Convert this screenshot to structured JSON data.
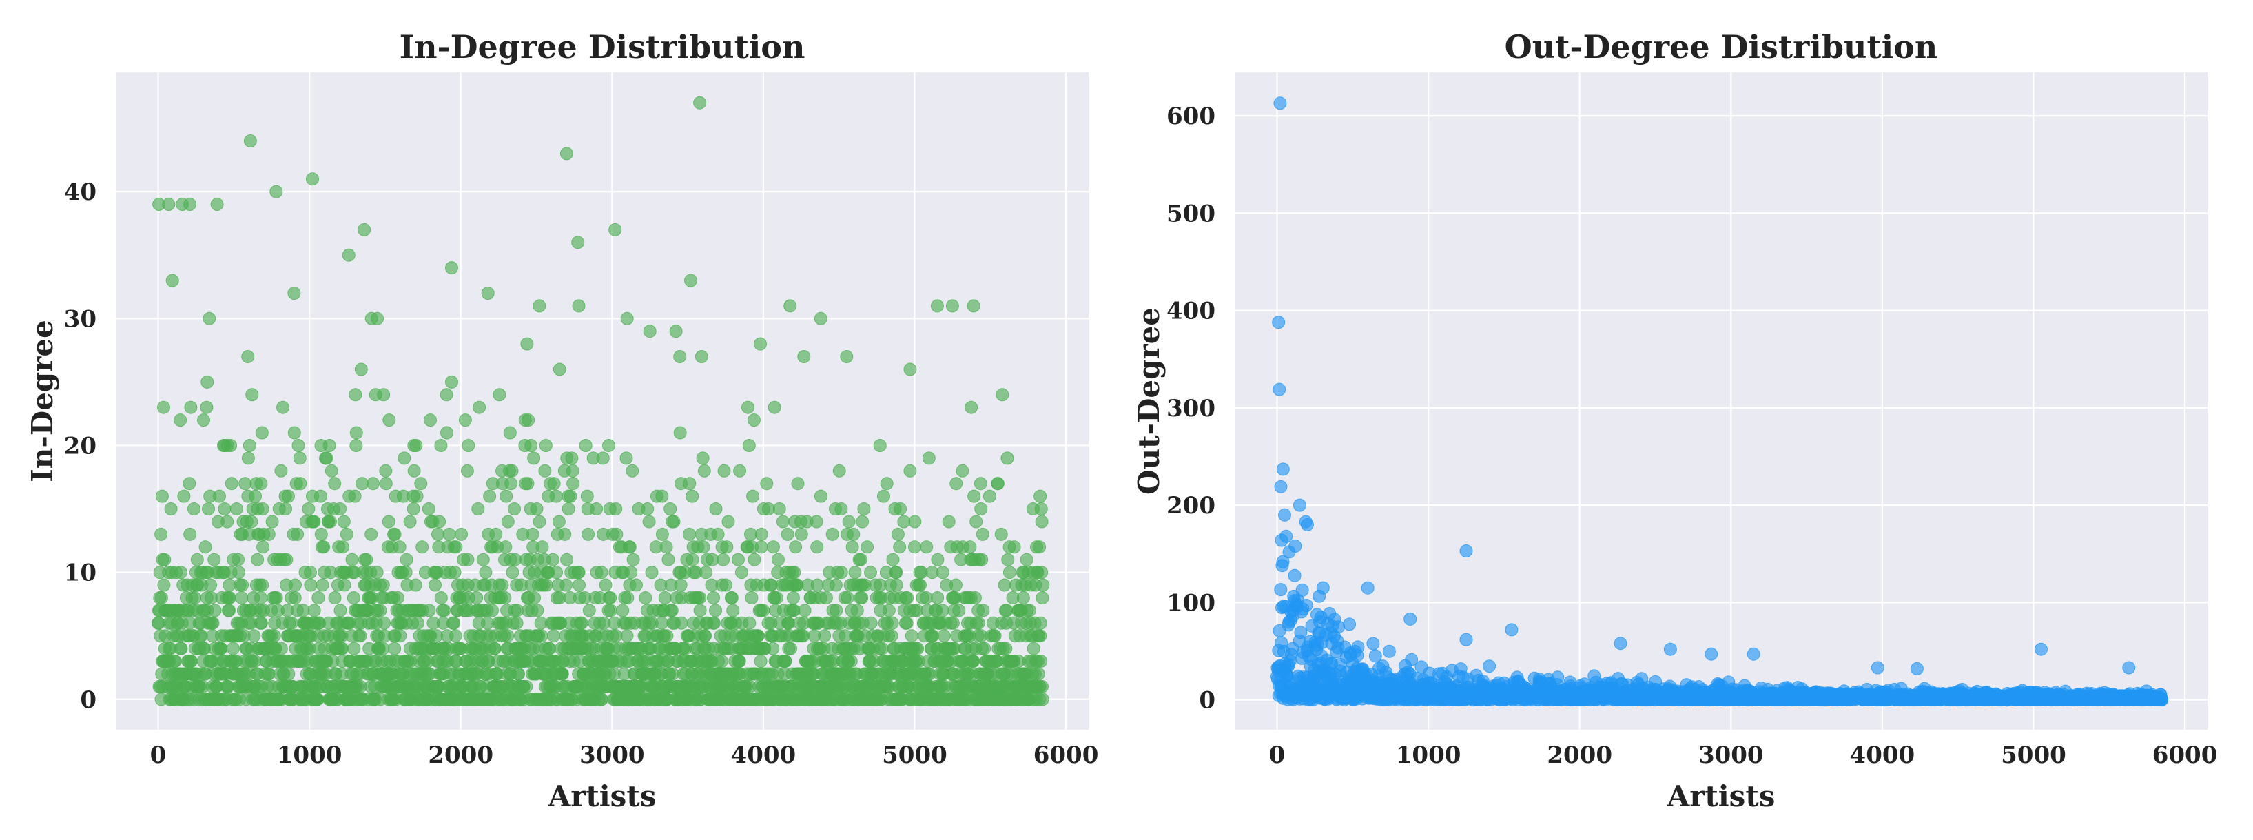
{
  "chart_data": [
    {
      "type": "scatter",
      "title": "In-Degree Distribution",
      "xlabel": "Artists",
      "ylabel": "In-Degree",
      "xlim": [
        -280,
        6150
      ],
      "ylim": [
        -2.4,
        49.4
      ],
      "xticks": [
        0,
        1000,
        2000,
        3000,
        4000,
        5000,
        6000
      ],
      "yticks": [
        0,
        10,
        20,
        30,
        40
      ],
      "n_points": 5850,
      "color": "#4CAF50",
      "background": "#EAEAF2",
      "grid": true,
      "highlights": [
        {
          "x": 5,
          "y": 39
        },
        {
          "x": 70,
          "y": 39
        },
        {
          "x": 160,
          "y": 39
        },
        {
          "x": 210,
          "y": 39
        },
        {
          "x": 390,
          "y": 39
        },
        {
          "x": 610,
          "y": 44
        },
        {
          "x": 780,
          "y": 40
        },
        {
          "x": 1020,
          "y": 41
        },
        {
          "x": 2700,
          "y": 43
        },
        {
          "x": 3580,
          "y": 47
        },
        {
          "x": 3020,
          "y": 37
        },
        {
          "x": 3520,
          "y": 33
        },
        {
          "x": 5150,
          "y": 31
        },
        {
          "x": 5250,
          "y": 31
        },
        {
          "x": 5390,
          "y": 31
        },
        {
          "x": 4380,
          "y": 30
        },
        {
          "x": 1260,
          "y": 35
        },
        {
          "x": 1940,
          "y": 34
        },
        {
          "x": 2180,
          "y": 32
        },
        {
          "x": 2520,
          "y": 31
        },
        {
          "x": 2780,
          "y": 31
        },
        {
          "x": 3100,
          "y": 30
        },
        {
          "x": 3980,
          "y": 28
        },
        {
          "x": 4970,
          "y": 26
        },
        {
          "x": 5580,
          "y": 24
        },
        {
          "x": 5830,
          "y": 16
        }
      ]
    },
    {
      "type": "scatter",
      "title": "Out-Degree Distribution",
      "xlabel": "Artists",
      "ylabel": "Out-Degree",
      "xlim": [
        -280,
        6150
      ],
      "ylim": [
        -30.7,
        644.7
      ],
      "xticks": [
        0,
        1000,
        2000,
        3000,
        4000,
        5000,
        6000
      ],
      "yticks": [
        0,
        100,
        200,
        300,
        400,
        500,
        600
      ],
      "n_points": 5850,
      "color": "#2196F3",
      "background": "#EAEAF2",
      "grid": true,
      "highlights": [
        {
          "x": 20,
          "y": 613
        },
        {
          "x": 10,
          "y": 388
        },
        {
          "x": 15,
          "y": 319
        },
        {
          "x": 40,
          "y": 237
        },
        {
          "x": 25,
          "y": 219
        },
        {
          "x": 150,
          "y": 200
        },
        {
          "x": 50,
          "y": 190
        },
        {
          "x": 190,
          "y": 183
        },
        {
          "x": 200,
          "y": 180
        },
        {
          "x": 60,
          "y": 168
        },
        {
          "x": 30,
          "y": 164
        },
        {
          "x": 120,
          "y": 158
        },
        {
          "x": 80,
          "y": 152
        },
        {
          "x": 1250,
          "y": 153
        },
        {
          "x": 600,
          "y": 115
        },
        {
          "x": 880,
          "y": 83
        },
        {
          "x": 1550,
          "y": 72
        },
        {
          "x": 1250,
          "y": 62
        },
        {
          "x": 2270,
          "y": 58
        },
        {
          "x": 2600,
          "y": 52
        },
        {
          "x": 5050,
          "y": 52
        },
        {
          "x": 2870,
          "y": 47
        },
        {
          "x": 3150,
          "y": 47
        },
        {
          "x": 5630,
          "y": 33
        },
        {
          "x": 3970,
          "y": 33
        },
        {
          "x": 4230,
          "y": 32
        }
      ]
    }
  ]
}
